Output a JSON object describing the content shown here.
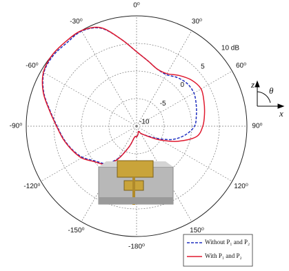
{
  "chart_data": {
    "type": "polar",
    "theta": [
      -180,
      -170,
      -160,
      -150,
      -140,
      -130,
      -120,
      -110,
      -100,
      -90,
      -80,
      -70,
      -60,
      -50,
      -40,
      -30,
      -20,
      -10,
      0,
      10,
      20,
      30,
      40,
      50,
      60,
      70,
      80,
      90,
      100,
      110,
      120,
      130,
      140,
      150,
      160,
      170,
      180
    ],
    "series": [
      {
        "name": "Without P₁ and P₂",
        "color": "#1f2fbf",
        "dash": true,
        "values": [
          -8,
          -8,
          -6,
          -3.2,
          -1.2,
          -0.2,
          1.3,
          2.4,
          3.4,
          4.4,
          5.9,
          7.9,
          9.4,
          9.8,
          9.7,
          9.9,
          8.9,
          6,
          3.5,
          2,
          1,
          0.8,
          1.5,
          2,
          2,
          1.5,
          1,
          0.5,
          -1,
          -3,
          -5.5,
          -7.2,
          -8,
          -8.5,
          -9,
          -8.5,
          -8
        ]
      },
      {
        "name": "With P₁ and P₂",
        "color": "#e0192e",
        "dash": false,
        "values": [
          -8,
          -8,
          -6,
          -3,
          -1,
          0,
          1.5,
          2.5,
          3.5,
          4.5,
          6,
          8,
          9.5,
          10,
          10,
          10,
          9,
          6,
          3.5,
          2,
          1,
          1,
          2,
          3,
          3.5,
          3,
          2.5,
          2,
          1,
          -2,
          -5,
          -7,
          -8,
          -8.5,
          -9,
          -8.5,
          -8
        ]
      }
    ],
    "rlim": [
      -10,
      10
    ],
    "rticks": [
      -10,
      -5,
      0,
      5,
      {
        "value": 10,
        "label": "10 dB"
      }
    ],
    "thetaticks": [
      {
        "value": 0,
        "label": "0⁰"
      },
      {
        "value": 30,
        "label": "30⁰"
      },
      {
        "value": 60,
        "label": "60⁰"
      },
      {
        "value": 90,
        "label": "90⁰"
      },
      {
        "value": 120,
        "label": "120⁰"
      },
      {
        "value": 150,
        "label": "150⁰"
      },
      {
        "value": 180,
        "label": "-180⁰"
      },
      {
        "value": -150,
        "label": "-150⁰"
      },
      {
        "value": -120,
        "label": "-120⁰"
      },
      {
        "value": -90,
        "label": "-90⁰"
      },
      {
        "value": -60,
        "label": "-60⁰"
      },
      {
        "value": -30,
        "label": "-30⁰"
      }
    ],
    "grid": true,
    "legend": "lower-right",
    "axis_icon": {
      "z": "z",
      "x": "x",
      "theta": "θ"
    }
  }
}
